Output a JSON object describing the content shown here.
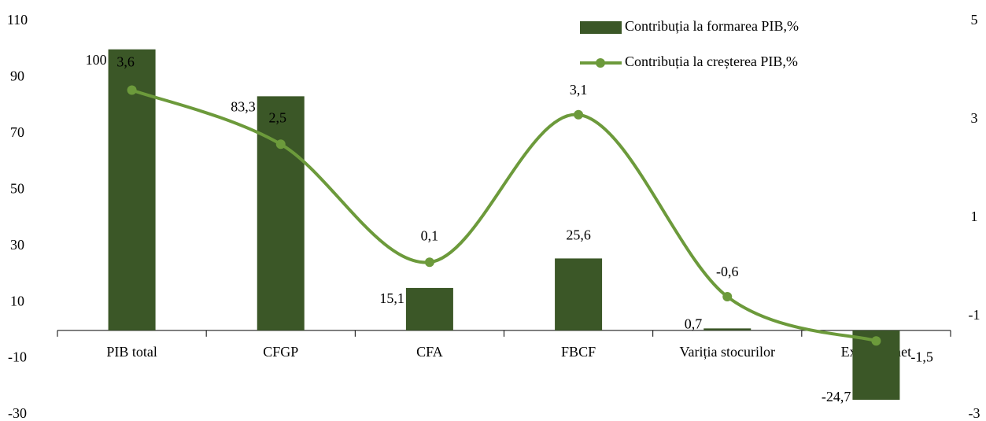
{
  "chart_data": {
    "type": "bar",
    "categories": [
      "PIB total",
      "CFGP",
      "CFA",
      "FBCF",
      "Variția stocurilor",
      "Exportul net"
    ],
    "series": [
      {
        "name": "Contribuția la formarea PIB,%",
        "type": "bar",
        "axis": "y",
        "color": "#3b5727",
        "values": [
          100,
          83.3,
          15.1,
          25.6,
          0.7,
          -24.7
        ],
        "value_labels": [
          "100",
          "83,3",
          "15,1",
          "25,6",
          "0,7",
          "-24,7"
        ]
      },
      {
        "name": "Contribuția la creșterea PIB,%",
        "type": "line",
        "axis": "y2",
        "color": "#6c9a3b",
        "values": [
          3.6,
          2.5,
          0.1,
          3.1,
          -0.6,
          -1.5
        ],
        "value_labels": [
          "3,6",
          "2,5",
          "0,1",
          "3,1",
          "-0,6",
          "-1,5"
        ]
      }
    ],
    "ylim": [
      -30,
      110
    ],
    "yticks": [
      -30,
      -10,
      10,
      30,
      50,
      70,
      90,
      110
    ],
    "y2lim": [
      -3,
      5
    ],
    "y2ticks": [
      -3,
      -1,
      1,
      3,
      5
    ],
    "legend": "top-right"
  }
}
